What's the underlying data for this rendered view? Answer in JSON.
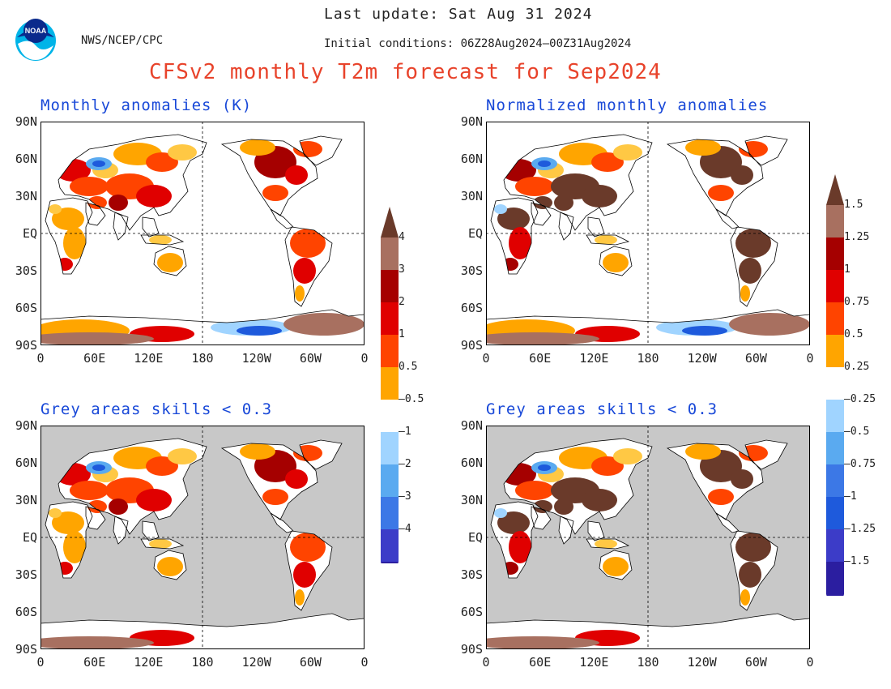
{
  "header": {
    "last_update": "Last update: Sat Aug 31 2024",
    "initial_conditions": "Initial conditions: 06Z28Aug2024—00Z31Aug2024",
    "agency": "NWS/NCEP/CPC",
    "logo_text": "NOAA",
    "title": "CFSv2 monthly T2m forecast for Sep2024"
  },
  "axes": {
    "lat_labels": [
      "90N",
      "60N",
      "30N",
      "EQ",
      "30S",
      "60S",
      "90S"
    ],
    "lon_labels": [
      "0",
      "60E",
      "120E",
      "180",
      "120W",
      "60W",
      "0"
    ]
  },
  "panels": [
    {
      "id": "tl",
      "title": "Monthly anomalies (K)",
      "grey_mask": false
    },
    {
      "id": "tr",
      "title": "Normalized monthly anomalies",
      "grey_mask": false
    },
    {
      "id": "bl",
      "title": "Grey areas skills < 0.3",
      "grey_mask": true
    },
    {
      "id": "br",
      "title": "Grey areas skills < 0.3",
      "grey_mask": true
    }
  ],
  "colorbars": [
    {
      "id": "abs",
      "labels": [
        "4",
        "3",
        "2",
        "1",
        "0.5",
        "–0.5",
        "–1",
        "–2",
        "–3",
        "–4"
      ]
    },
    {
      "id": "norm",
      "labels": [
        "1.5",
        "1.25",
        "1",
        "0.75",
        "0.5",
        "0.25",
        "–0.25",
        "–0.5",
        "–0.75",
        "–1",
        "–1.25",
        "–1.5"
      ]
    }
  ],
  "colors": {
    "title_red": "#e8432b",
    "panel_blue": "#1848d8",
    "skill_grey": "#c8c8c8",
    "scale": [
      "#6a3a2a",
      "#a87060",
      "#a50000",
      "#e00000",
      "#ff4400",
      "#ffa500",
      "#ffc844",
      "#ffffff",
      "#ffffff",
      "#a0d4ff",
      "#5aaaf0",
      "#3c78e6",
      "#1e5adc",
      "#3c3cc8",
      "#2b1ea0"
    ]
  }
}
